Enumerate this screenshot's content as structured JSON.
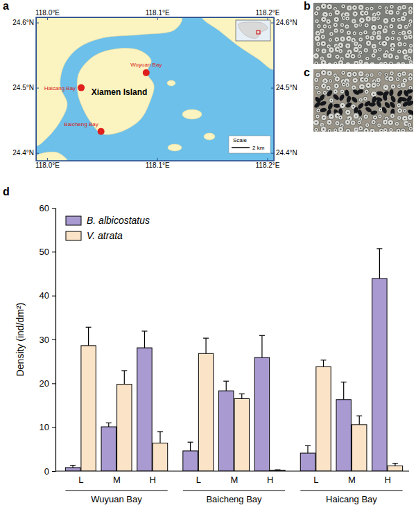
{
  "panel_labels": [
    "a",
    "b",
    "c",
    "d"
  ],
  "map": {
    "xlim": [
      117.99,
      118.206
    ],
    "ylim": [
      24.388,
      24.608
    ],
    "xticks": [
      {
        "value": 118.0,
        "label": "118.0°E"
      },
      {
        "value": 118.1,
        "label": "118.1°E"
      },
      {
        "value": 118.2,
        "label": "118.2°E"
      }
    ],
    "yticks": [
      {
        "value": 24.4,
        "label": "24.4°N"
      },
      {
        "value": 24.5,
        "label": "24.5°N"
      },
      {
        "value": 24.6,
        "label": "24.6°N"
      }
    ],
    "sites": [
      {
        "name": "Haicang Bay",
        "lon": 118.031,
        "lat": 24.5
      },
      {
        "name": "Wuyuan Bay",
        "lon": 118.09,
        "lat": 24.523
      },
      {
        "name": "Baicheng Bay",
        "lon": 118.049,
        "lat": 24.433
      }
    ],
    "island_label": "Xiamen Island",
    "scale_title": "Scale",
    "scale_text": "2 km"
  },
  "chart_data": {
    "type": "bar",
    "categories": [
      "L",
      "M",
      "H",
      "L",
      "M",
      "H",
      "L",
      "M",
      "H"
    ],
    "groups": [
      "Wuyuan Bay",
      "Baicheng Bay",
      "Haicang Bay"
    ],
    "ylabel": "Density (ind/dm²)",
    "ylim": [
      0,
      60
    ],
    "yticks": [
      0,
      10,
      20,
      30,
      40,
      50,
      60
    ],
    "legend": "upper left",
    "series": [
      {
        "name": "B. albicostatus",
        "color": "#a99bd1",
        "values": [
          0.8,
          10.1,
          28.1,
          4.6,
          18.3,
          25.9,
          4.1,
          16.3,
          43.9
        ],
        "errors": [
          0.5,
          0.9,
          3.8,
          2.0,
          2.2,
          5.0,
          1.7,
          4.0,
          6.8
        ]
      },
      {
        "name": "V. atrata",
        "color": "#fbe3c8",
        "values": [
          28.6,
          19.8,
          6.4,
          26.8,
          16.5,
          0.2,
          23.8,
          10.6,
          1.2
        ],
        "errors": [
          4.2,
          3.1,
          2.6,
          3.5,
          1.1,
          0.1,
          1.5,
          2.0,
          0.6
        ]
      }
    ]
  }
}
